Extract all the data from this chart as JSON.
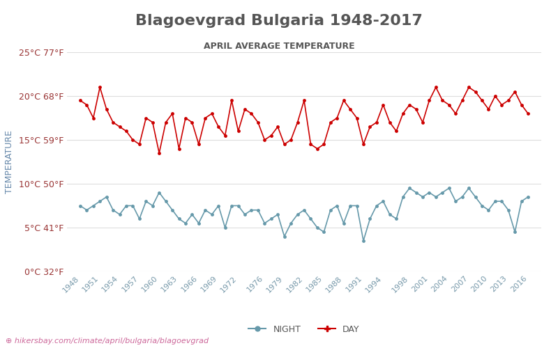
{
  "title": "Blagoevgrad Bulgaria 1948-2017",
  "subtitle": "APRIL AVERAGE TEMPERATURE",
  "ylabel": "TEMPERATURE",
  "watermark": "hikersbay.com/climate/april/bulgaria/blagoevgrad",
  "years": [
    1948,
    1949,
    1950,
    1951,
    1952,
    1953,
    1954,
    1955,
    1956,
    1957,
    1958,
    1959,
    1960,
    1961,
    1962,
    1963,
    1964,
    1965,
    1966,
    1967,
    1968,
    1969,
    1970,
    1971,
    1972,
    1973,
    1974,
    1975,
    1976,
    1977,
    1978,
    1979,
    1980,
    1981,
    1982,
    1983,
    1984,
    1985,
    1986,
    1987,
    1988,
    1989,
    1990,
    1991,
    1992,
    1993,
    1994,
    1995,
    1996,
    1997,
    1998,
    1999,
    2000,
    2001,
    2002,
    2003,
    2004,
    2005,
    2006,
    2007,
    2008,
    2009,
    2010,
    2011,
    2012,
    2013,
    2014,
    2015,
    2016
  ],
  "day": [
    19.5,
    19.0,
    17.5,
    21.0,
    18.5,
    17.0,
    16.5,
    16.0,
    15.0,
    14.5,
    17.5,
    17.0,
    13.5,
    17.0,
    18.0,
    14.0,
    17.5,
    17.0,
    14.5,
    17.5,
    18.0,
    16.5,
    15.5,
    19.5,
    16.0,
    18.5,
    18.0,
    17.0,
    15.0,
    15.5,
    16.5,
    14.5,
    15.0,
    17.0,
    19.5,
    14.5,
    14.0,
    14.5,
    17.0,
    17.5,
    19.5,
    18.5,
    17.5,
    14.5,
    16.5,
    17.0,
    19.0,
    17.0,
    16.0,
    18.0,
    19.0,
    18.5,
    17.0,
    19.5,
    21.0,
    19.5,
    19.0,
    18.0,
    19.5,
    21.0,
    20.5,
    19.5,
    18.5,
    20.0,
    19.0,
    19.5,
    20.5,
    19.0,
    18.0
  ],
  "night": [
    7.5,
    7.0,
    7.5,
    8.0,
    8.5,
    7.0,
    6.5,
    7.5,
    7.5,
    6.0,
    8.0,
    7.5,
    9.0,
    8.0,
    7.0,
    6.0,
    5.5,
    6.5,
    5.5,
    7.0,
    6.5,
    7.5,
    5.0,
    7.5,
    7.5,
    6.5,
    7.0,
    7.0,
    5.5,
    6.0,
    6.5,
    4.0,
    5.5,
    6.5,
    7.0,
    6.0,
    5.0,
    4.5,
    7.0,
    7.5,
    5.5,
    7.5,
    7.5,
    3.5,
    6.0,
    7.5,
    8.0,
    6.5,
    6.0,
    8.5,
    9.5,
    9.0,
    8.5,
    9.0,
    8.5,
    9.0,
    9.5,
    8.0,
    8.5,
    9.5,
    8.5,
    7.5,
    7.0,
    8.0,
    8.0,
    7.0,
    4.5,
    8.0,
    8.5
  ],
  "day_color": "#cc0000",
  "night_color": "#6699aa",
  "title_color": "#555555",
  "subtitle_color": "#555555",
  "ylabel_color": "#6688aa",
  "tick_label_color": "#993333",
  "xtick_color": "#7799aa",
  "grid_color": "#dddddd",
  "bg_color": "#ffffff",
  "watermark_color": "#cc6699",
  "ylim": [
    0,
    25
  ],
  "yticks_c": [
    0,
    5,
    10,
    15,
    20,
    25
  ],
  "ytick_labels": [
    "0°C 32°F",
    "5°C 41°F",
    "10°C 50°F",
    "15°C 59°F",
    "20°C 68°F",
    "25°C 77°F"
  ],
  "xtick_years": [
    1948,
    1951,
    1954,
    1957,
    1960,
    1963,
    1966,
    1969,
    1972,
    1976,
    1979,
    1982,
    1985,
    1988,
    1991,
    1994,
    1998,
    2001,
    2004,
    2007,
    2010,
    2013,
    2016
  ]
}
